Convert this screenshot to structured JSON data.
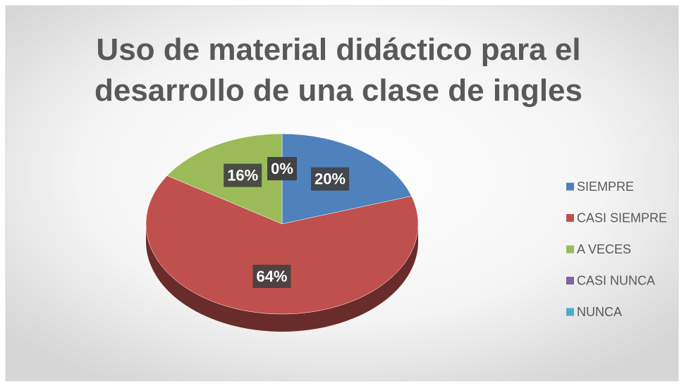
{
  "chart_data": {
    "type": "pie",
    "title": "Uso de material didáctico para el desarrollo de una clase de ingles",
    "categories": [
      "SIEMPRE",
      "CASI SIEMPRE",
      "A VECES",
      "CASI NUNCA",
      "NUNCA"
    ],
    "values": [
      20,
      64,
      16,
      0,
      0
    ],
    "value_labels": [
      "20%",
      "64%",
      "16%",
      "0%",
      "0%"
    ],
    "colors": [
      "#4f81bd",
      "#c0504d",
      "#9bbb59",
      "#8064a2",
      "#4bacc6"
    ],
    "legend": "right"
  }
}
